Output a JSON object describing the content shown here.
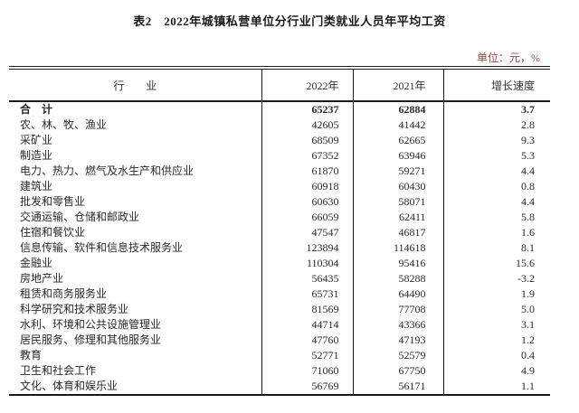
{
  "title": "表2　2022年城镇私营单位分行业门类就业人员年平均工资",
  "unit_note": "单位：元，%",
  "colors": {
    "unit_text": "#a0483e",
    "text": "#2a2a2a",
    "border": "#1a1a1a",
    "background": "#ffffff"
  },
  "table": {
    "columns": {
      "industry": "行　　业",
      "y2022": "2022年",
      "y2021": "2021年",
      "growth": "增长速度"
    },
    "rows": [
      {
        "industry": "合　计",
        "y2022": "65237",
        "y2021": "62884",
        "growth": "3.7",
        "bold": true
      },
      {
        "industry": "农、林、牧、渔业",
        "y2022": "42605",
        "y2021": "41442",
        "growth": "2.8",
        "bold": false
      },
      {
        "industry": "采矿业",
        "y2022": "68509",
        "y2021": "62665",
        "growth": "9.3",
        "bold": false
      },
      {
        "industry": "制造业",
        "y2022": "67352",
        "y2021": "63946",
        "growth": "5.3",
        "bold": false
      },
      {
        "industry": "电力、热力、燃气及水生产和供应业",
        "y2022": "61870",
        "y2021": "59271",
        "growth": "4.4",
        "bold": false
      },
      {
        "industry": "建筑业",
        "y2022": "60918",
        "y2021": "60430",
        "growth": "0.8",
        "bold": false
      },
      {
        "industry": "批发和零售业",
        "y2022": "60630",
        "y2021": "58071",
        "growth": "4.4",
        "bold": false
      },
      {
        "industry": "交通运输、仓储和邮政业",
        "y2022": "66059",
        "y2021": "62411",
        "growth": "5.8",
        "bold": false
      },
      {
        "industry": "住宿和餐饮业",
        "y2022": "47547",
        "y2021": "46817",
        "growth": "1.6",
        "bold": false
      },
      {
        "industry": "信息传输、软件和信息技术服务业",
        "y2022": "123894",
        "y2021": "114618",
        "growth": "8.1",
        "bold": false
      },
      {
        "industry": "金融业",
        "y2022": "110304",
        "y2021": "95416",
        "growth": "15.6",
        "bold": false
      },
      {
        "industry": "房地产业",
        "y2022": "56435",
        "y2021": "58288",
        "growth": "-3.2",
        "bold": false
      },
      {
        "industry": "租赁和商务服务业",
        "y2022": "65731",
        "y2021": "64490",
        "growth": "1.9",
        "bold": false
      },
      {
        "industry": "科学研究和技术服务业",
        "y2022": "81569",
        "y2021": "77708",
        "growth": "5.0",
        "bold": false
      },
      {
        "industry": "水利、环境和公共设施管理业",
        "y2022": "44714",
        "y2021": "43366",
        "growth": "3.1",
        "bold": false
      },
      {
        "industry": "居民服务、修理和其他服务业",
        "y2022": "47760",
        "y2021": "47193",
        "growth": "1.2",
        "bold": false
      },
      {
        "industry": "教育",
        "y2022": "52771",
        "y2021": "52579",
        "growth": "0.4",
        "bold": false
      },
      {
        "industry": "卫生和社会工作",
        "y2022": "71060",
        "y2021": "67750",
        "growth": "4.9",
        "bold": false
      },
      {
        "industry": "文化、体育和娱乐业",
        "y2022": "56769",
        "y2021": "56171",
        "growth": "1.1",
        "bold": false
      }
    ]
  }
}
